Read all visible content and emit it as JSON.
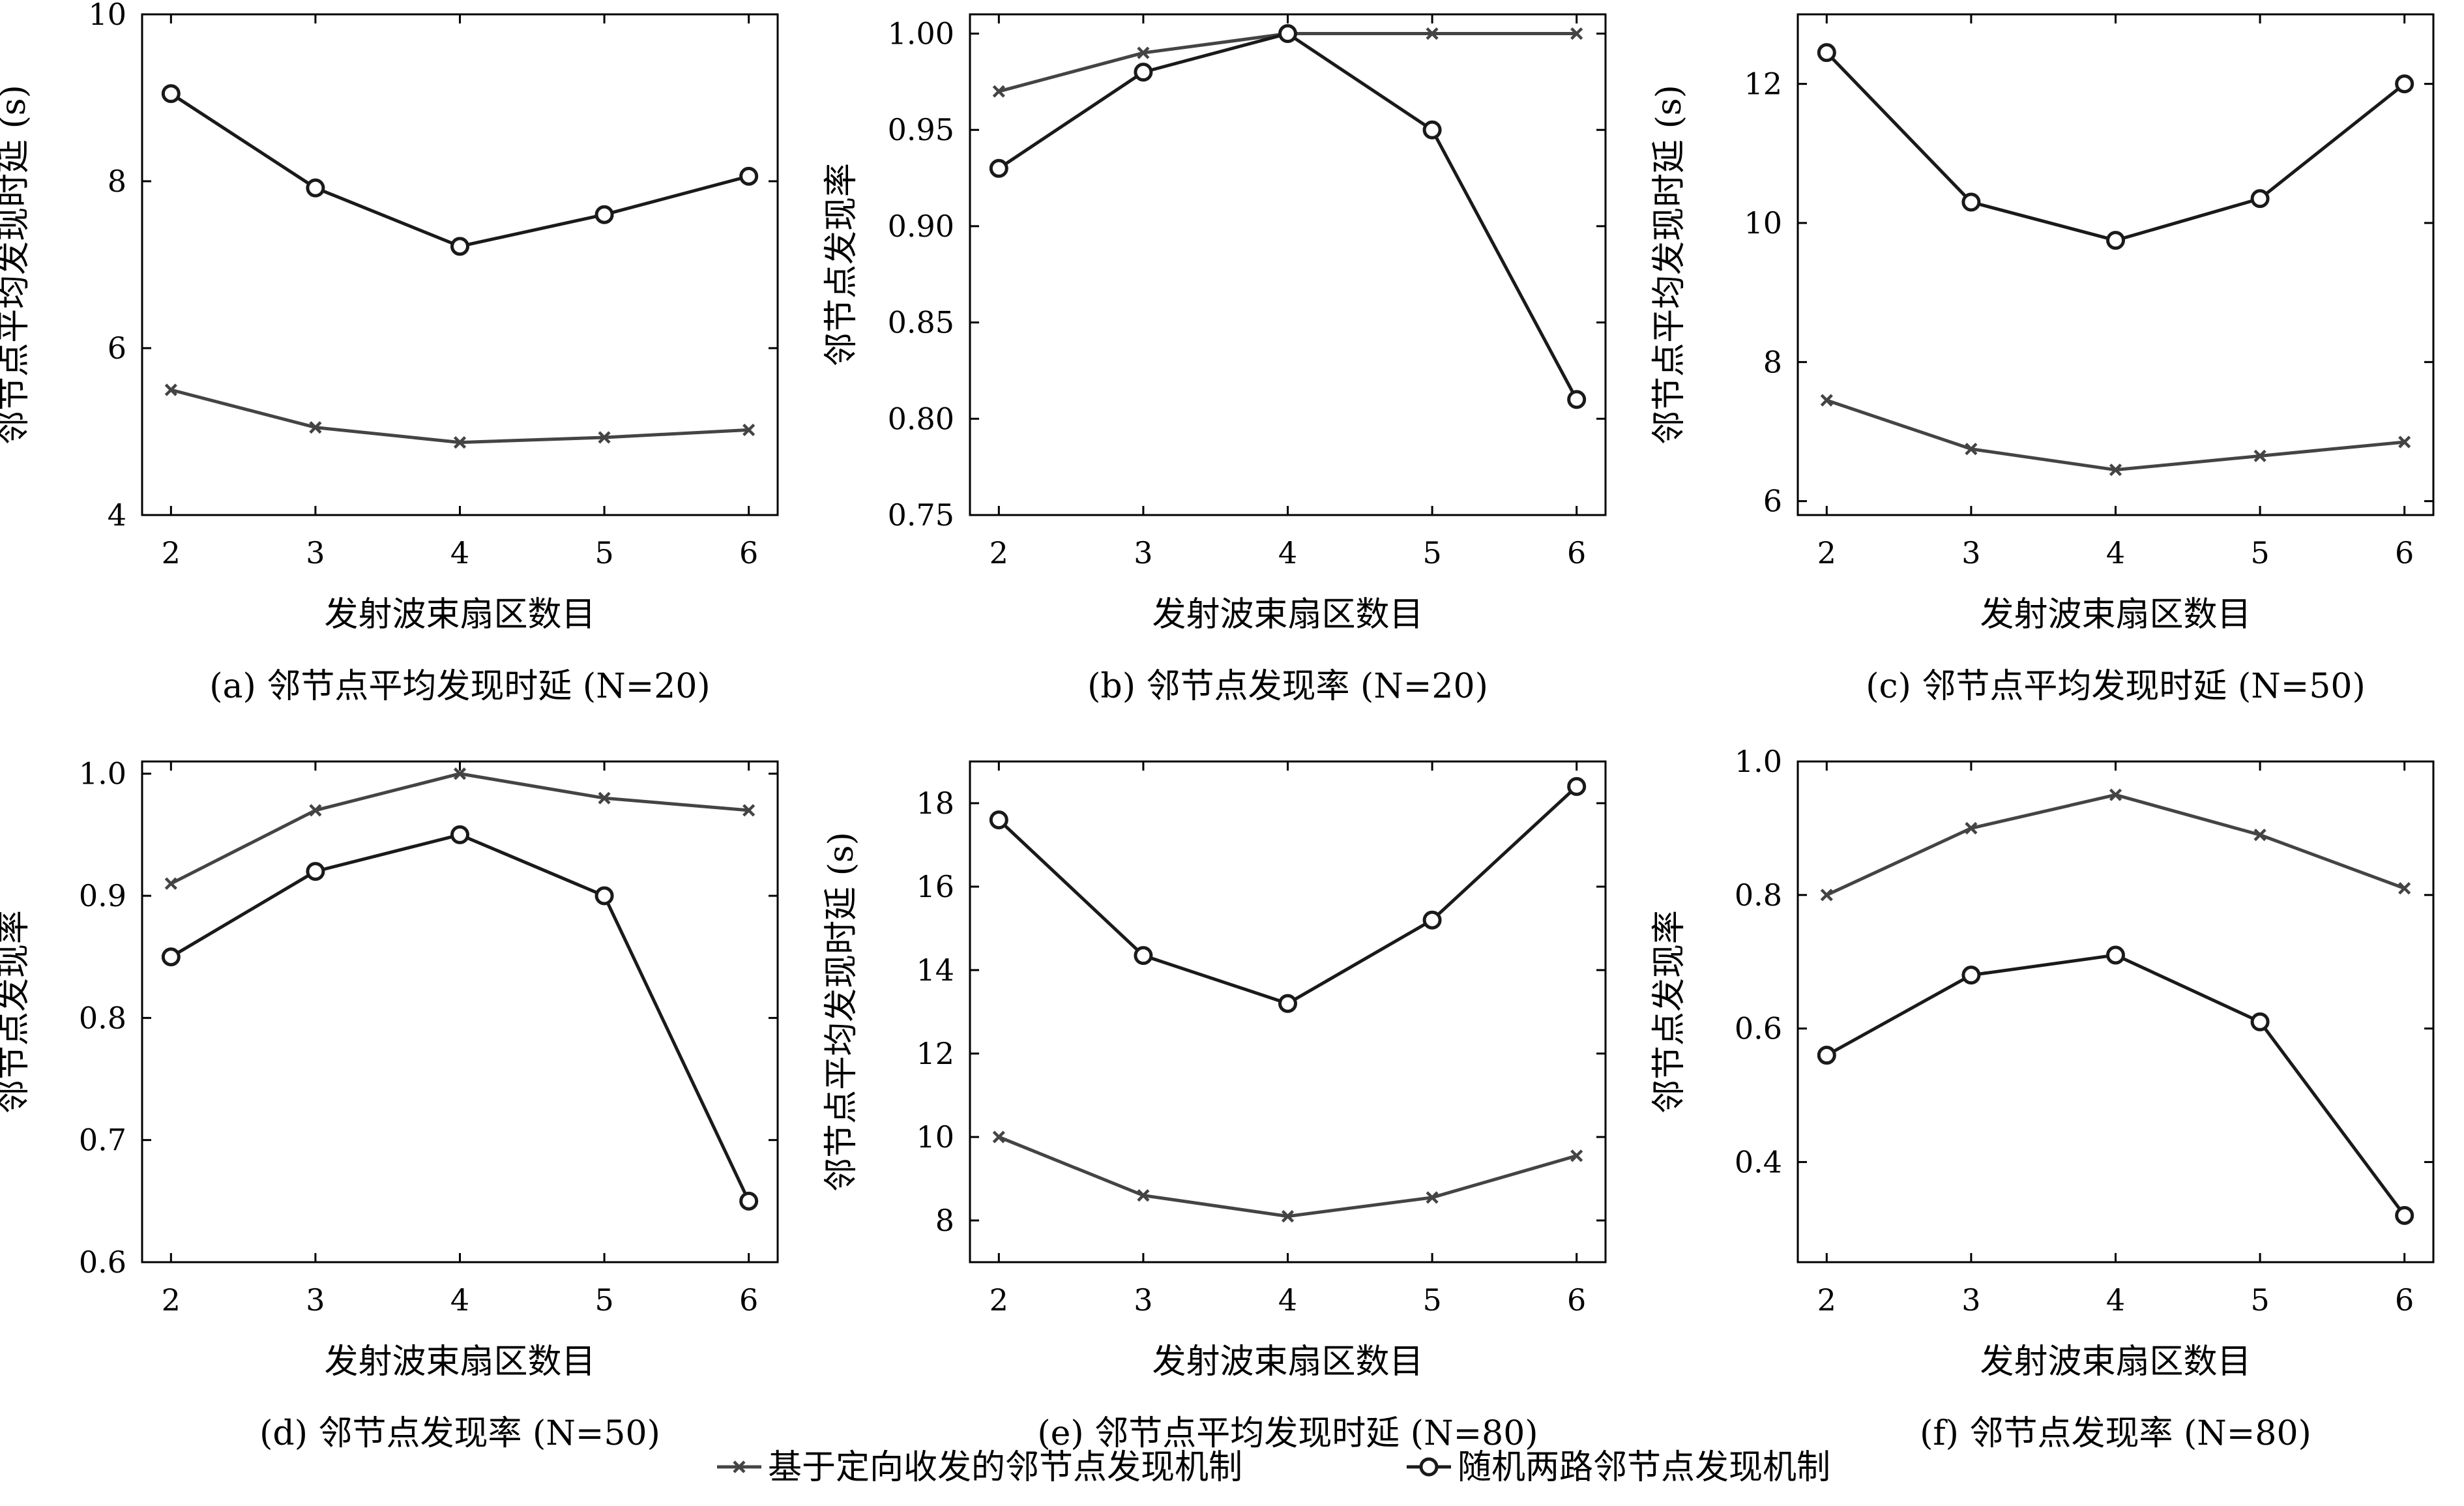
{
  "legend": {
    "items": [
      {
        "label": "基于定向收发的邻节点发现机制",
        "color": "#444444",
        "marker": "x"
      },
      {
        "label": "随机两路邻节点发现机制",
        "color": "#1a1a1a",
        "marker": "o"
      }
    ]
  },
  "chart_data": [
    {
      "type": "line",
      "caption": "(a) 邻节点平均发现时延 (N=20)",
      "xlabel": "发射波束扇区数目",
      "ylabel": "邻节点平均发现时延 (s)",
      "x": [
        2,
        3,
        4,
        5,
        6
      ],
      "xlim": [
        1.8,
        6.2
      ],
      "ylim": [
        4,
        10
      ],
      "yticks": [
        4,
        6,
        8,
        10
      ],
      "ytick_labels": [
        "4",
        "6",
        "8",
        "10"
      ],
      "series": [
        {
          "name": "基于定向收发的邻节点发现机制",
          "values": [
            5.5,
            5.05,
            4.87,
            4.93,
            5.02
          ]
        },
        {
          "name": "随机两路邻节点发现机制",
          "values": [
            9.05,
            7.92,
            7.22,
            7.6,
            8.06
          ]
        }
      ]
    },
    {
      "type": "line",
      "caption": "(b) 邻节点发现率 (N=20)",
      "xlabel": "发射波束扇区数目",
      "ylabel": "邻节点发现率",
      "x": [
        2,
        3,
        4,
        5,
        6
      ],
      "xlim": [
        1.8,
        6.2
      ],
      "ylim": [
        0.75,
        1.01
      ],
      "yticks": [
        0.75,
        0.8,
        0.85,
        0.9,
        0.95,
        1.0
      ],
      "ytick_labels": [
        "0.75",
        "0.80",
        "0.85",
        "0.90",
        "0.95",
        "1.00"
      ],
      "series": [
        {
          "name": "基于定向收发的邻节点发现机制",
          "values": [
            0.97,
            0.99,
            1.0,
            1.0,
            1.0
          ]
        },
        {
          "name": "随机两路邻节点发现机制",
          "values": [
            0.93,
            0.98,
            1.0,
            0.95,
            0.81
          ]
        }
      ]
    },
    {
      "type": "line",
      "caption": "(c) 邻节点平均发现时延 (N=50)",
      "xlabel": "发射波束扇区数目",
      "ylabel": "邻节点平均发现时延 (s)",
      "x": [
        2,
        3,
        4,
        5,
        6
      ],
      "xlim": [
        1.8,
        6.2
      ],
      "ylim": [
        5.8,
        13
      ],
      "yticks": [
        6,
        8,
        10,
        12
      ],
      "ytick_labels": [
        "6",
        "8",
        "10",
        "12"
      ],
      "series": [
        {
          "name": "基于定向收发的邻节点发现机制",
          "values": [
            7.45,
            6.75,
            6.45,
            6.65,
            6.85
          ]
        },
        {
          "name": "随机两路邻节点发现机制",
          "values": [
            12.45,
            10.3,
            9.75,
            10.35,
            12.0
          ]
        }
      ]
    },
    {
      "type": "line",
      "caption": "(d) 邻节点发现率 (N=50)",
      "xlabel": "发射波束扇区数目",
      "ylabel": "邻节点发现率",
      "x": [
        2,
        3,
        4,
        5,
        6
      ],
      "xlim": [
        1.8,
        6.2
      ],
      "ylim": [
        0.6,
        1.01
      ],
      "yticks": [
        0.6,
        0.7,
        0.8,
        0.9,
        1.0
      ],
      "ytick_labels": [
        "0.6",
        "0.7",
        "0.8",
        "0.9",
        "1.0"
      ],
      "series": [
        {
          "name": "基于定向收发的邻节点发现机制",
          "values": [
            0.91,
            0.97,
            1.0,
            0.98,
            0.97
          ]
        },
        {
          "name": "随机两路邻节点发现机制",
          "values": [
            0.85,
            0.92,
            0.95,
            0.9,
            0.65
          ]
        }
      ]
    },
    {
      "type": "line",
      "caption": "(e) 邻节点平均发现时延 (N=80)",
      "xlabel": "发射波束扇区数目",
      "ylabel": "邻节点平均发现时延 (s)",
      "x": [
        2,
        3,
        4,
        5,
        6
      ],
      "xlim": [
        1.8,
        6.2
      ],
      "ylim": [
        7,
        19
      ],
      "yticks": [
        8,
        10,
        12,
        14,
        16,
        18
      ],
      "ytick_labels": [
        "8",
        "10",
        "12",
        "14",
        "16",
        "18"
      ],
      "series": [
        {
          "name": "基于定向收发的邻节点发现机制",
          "values": [
            10.0,
            8.6,
            8.1,
            8.55,
            9.55
          ]
        },
        {
          "name": "随机两路邻节点发现机制",
          "values": [
            17.6,
            14.35,
            13.2,
            15.2,
            18.4
          ]
        }
      ]
    },
    {
      "type": "line",
      "caption": "(f) 邻节点发现率 (N=80)",
      "xlabel": "发射波束扇区数目",
      "ylabel": "邻节点发现率",
      "x": [
        2,
        3,
        4,
        5,
        6
      ],
      "xlim": [
        1.8,
        6.2
      ],
      "ylim": [
        0.25,
        1.0
      ],
      "yticks": [
        0.4,
        0.6,
        0.8,
        1.0
      ],
      "ytick_labels": [
        "0.4",
        "0.6",
        "0.8",
        "1.0"
      ],
      "series": [
        {
          "name": "基于定向收发的邻节点发现机制",
          "values": [
            0.8,
            0.9,
            0.95,
            0.89,
            0.81
          ]
        },
        {
          "name": "随机两路邻节点发现机制",
          "values": [
            0.56,
            0.68,
            0.71,
            0.61,
            0.32
          ]
        }
      ]
    }
  ]
}
